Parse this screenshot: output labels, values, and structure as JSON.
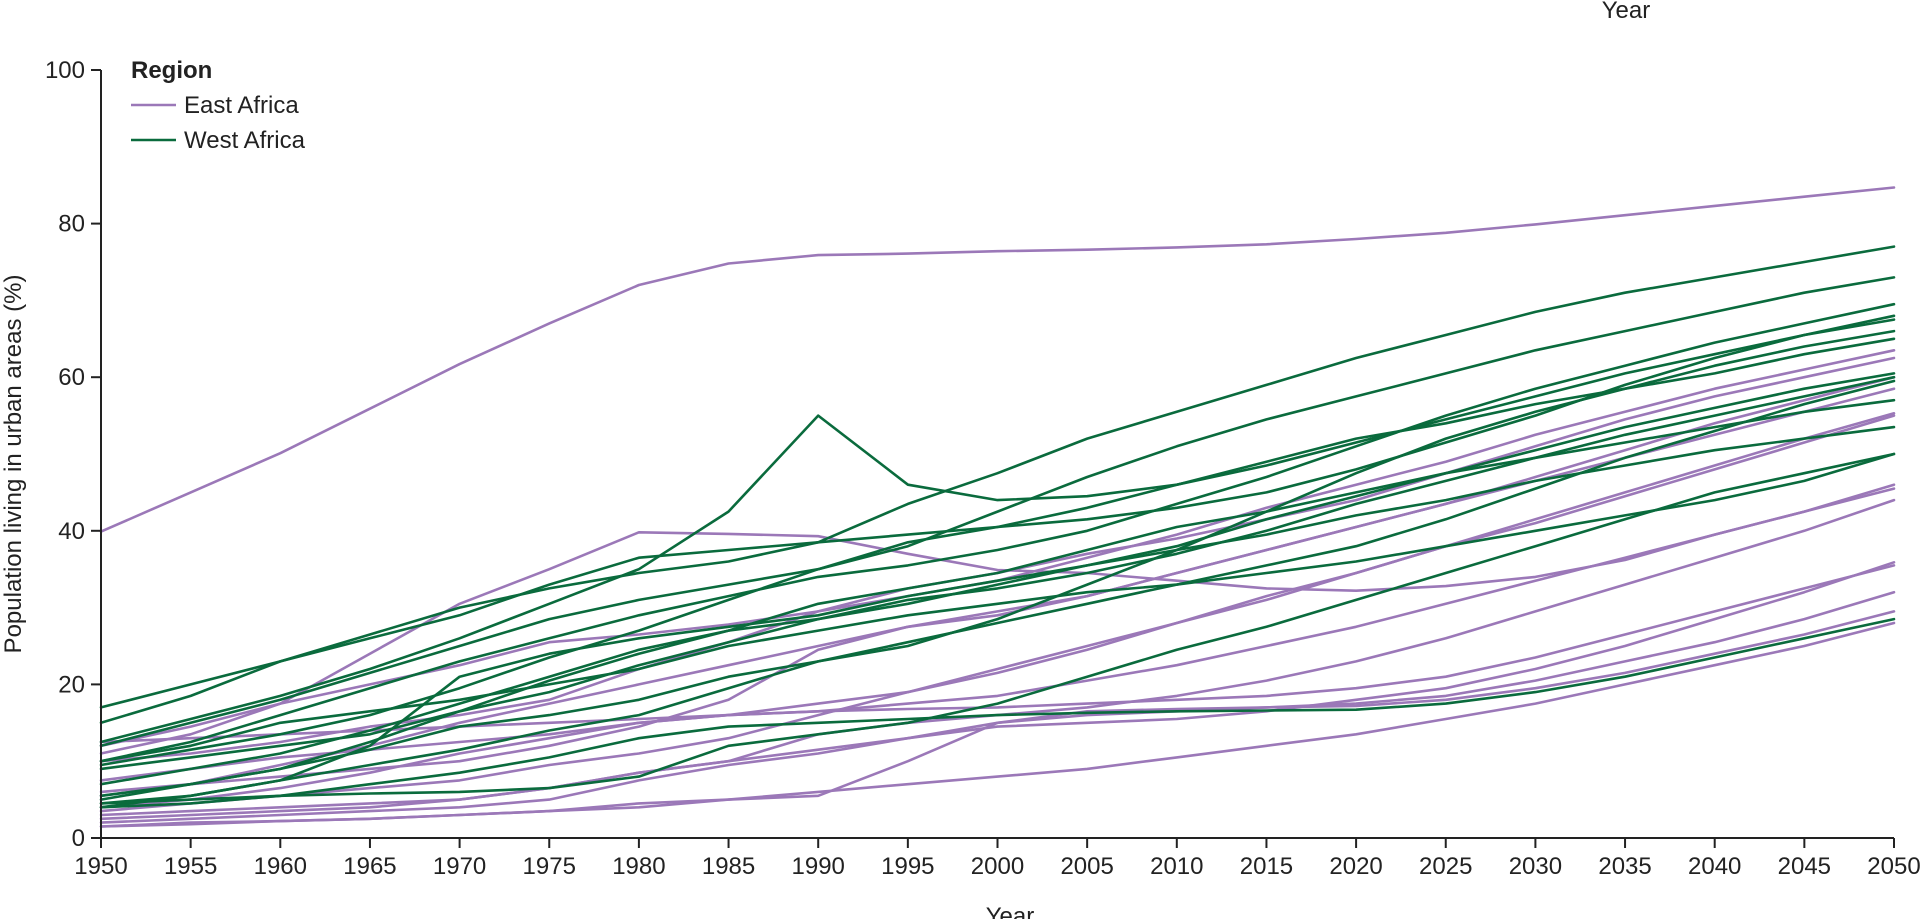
{
  "chart_data": {
    "type": "line",
    "title": "",
    "top_clipped_label": "Year",
    "xlabel": "Year",
    "ylabel": "Population living in urban areas (%)",
    "xlim": [
      1950,
      2050
    ],
    "ylim": [
      0,
      100
    ],
    "x_ticks": [
      1950,
      1955,
      1960,
      1965,
      1970,
      1975,
      1980,
      1985,
      1990,
      1995,
      2000,
      2005,
      2010,
      2015,
      2020,
      2025,
      2030,
      2035,
      2040,
      2045,
      2050
    ],
    "y_ticks": [
      0,
      20,
      40,
      60,
      80,
      100
    ],
    "grid": false,
    "legend": {
      "title": "Region",
      "placement": "top-left",
      "entries": [
        {
          "label": "East Africa",
          "color": "#9b78b8"
        },
        {
          "label": "West Africa",
          "color": "#0a6b3d"
        }
      ]
    },
    "x": [
      1950,
      1955,
      1960,
      1965,
      1970,
      1975,
      1980,
      1985,
      1990,
      1995,
      2000,
      2005,
      2010,
      2015,
      2020,
      2025,
      2030,
      2035,
      2040,
      2045,
      2050
    ],
    "series": [
      {
        "region": "East Africa",
        "values": [
          39.9,
          45.0,
          50.1,
          55.9,
          61.7,
          67.0,
          72.0,
          74.8,
          75.9,
          76.1,
          76.4,
          76.6,
          76.9,
          77.3,
          78.0,
          78.8,
          79.9,
          81.1,
          82.3,
          83.5,
          84.7
        ]
      },
      {
        "region": "East Africa",
        "values": [
          11.0,
          13.5,
          17.5,
          24.0,
          30.5,
          35.0,
          39.8,
          39.6,
          39.3,
          37.0,
          34.9,
          34.5,
          33.5,
          32.5,
          32.2,
          32.8,
          34.0,
          36.2,
          39.5,
          42.5,
          46.0
        ]
      },
      {
        "region": "East Africa",
        "values": [
          12.0,
          14.5,
          17.5,
          20.0,
          22.5,
          25.5,
          26.5,
          27.8,
          29.5,
          31.5,
          33.5,
          36.5,
          39.5,
          43.0,
          46.0,
          49.0,
          52.5,
          55.5,
          58.5,
          61.0,
          63.5
        ]
      },
      {
        "region": "East Africa",
        "values": [
          10.0,
          11.0,
          12.5,
          14.5,
          16.0,
          18.0,
          22.0,
          25.5,
          29.5,
          32.5,
          34.5,
          37.0,
          39.0,
          41.5,
          44.0,
          47.5,
          51.0,
          54.5,
          57.5,
          60.0,
          62.5
        ]
      },
      {
        "region": "East Africa",
        "values": [
          5.5,
          7.0,
          9.5,
          12.0,
          15.0,
          17.5,
          20.0,
          22.5,
          25.0,
          27.5,
          29.0,
          31.5,
          34.5,
          37.5,
          40.5,
          43.5,
          47.0,
          50.5,
          54.0,
          57.0,
          60.0
        ]
      },
      {
        "region": "East Africa",
        "values": [
          6.0,
          7.0,
          8.0,
          9.0,
          10.0,
          12.0,
          14.5,
          18.0,
          24.5,
          27.5,
          29.5,
          31.5,
          34.5,
          37.5,
          40.5,
          43.5,
          46.5,
          49.5,
          52.5,
          55.5,
          58.5
        ]
      },
      {
        "region": "East Africa",
        "values": [
          4.0,
          5.0,
          6.5,
          8.5,
          11.0,
          13.0,
          15.0,
          16.0,
          17.5,
          19.0,
          21.5,
          24.5,
          28.0,
          31.0,
          34.5,
          38.0,
          41.5,
          45.0,
          48.5,
          52.0,
          55.3
        ]
      },
      {
        "region": "East Africa",
        "values": [
          3.5,
          4.5,
          5.5,
          6.5,
          7.5,
          9.5,
          11.0,
          13.0,
          16.0,
          19.0,
          22.0,
          25.0,
          28.0,
          31.5,
          34.5,
          38.0,
          41.0,
          44.5,
          48.0,
          51.5,
          55.0
        ]
      },
      {
        "region": "East Africa",
        "values": [
          7.5,
          9.0,
          10.5,
          11.5,
          12.5,
          13.5,
          15.0,
          16.0,
          16.5,
          17.5,
          18.5,
          20.5,
          22.5,
          25.0,
          27.5,
          30.5,
          33.5,
          36.5,
          39.5,
          42.5,
          45.5
        ]
      },
      {
        "region": "East Africa",
        "values": [
          3.0,
          3.5,
          4.0,
          4.5,
          5.0,
          6.5,
          8.5,
          10.0,
          13.5,
          15.0,
          16.0,
          17.0,
          18.5,
          20.5,
          23.0,
          26.0,
          29.5,
          33.0,
          36.5,
          40.0,
          44.0
        ]
      },
      {
        "region": "East Africa",
        "values": [
          2.5,
          3.0,
          3.5,
          4.0,
          5.0,
          6.5,
          8.5,
          10.0,
          11.5,
          13.0,
          14.5,
          15.0,
          15.5,
          16.5,
          18.0,
          19.5,
          22.0,
          25.0,
          28.5,
          32.0,
          35.9
        ]
      },
      {
        "region": "East Africa",
        "values": [
          2.0,
          2.5,
          3.0,
          3.5,
          4.0,
          5.0,
          7.5,
          9.5,
          11.0,
          13.0,
          15.0,
          16.0,
          16.5,
          17.0,
          17.5,
          18.5,
          20.5,
          23.0,
          25.5,
          28.5,
          32.0
        ]
      },
      {
        "region": "East Africa",
        "values": [
          1.5,
          2.0,
          2.2,
          2.5,
          3.0,
          3.5,
          4.0,
          5.0,
          5.5,
          10.0,
          15.0,
          16.5,
          16.8,
          17.0,
          17.2,
          18.0,
          19.5,
          21.5,
          24.0,
          26.5,
          29.5
        ]
      },
      {
        "region": "East Africa",
        "values": [
          1.5,
          1.8,
          2.2,
          2.5,
          3.0,
          3.5,
          4.5,
          5.0,
          6.0,
          7.0,
          8.0,
          9.0,
          10.5,
          12.0,
          13.5,
          15.5,
          17.5,
          20.0,
          22.5,
          25.0,
          28.0
        ]
      },
      {
        "region": "East Africa",
        "values": [
          12.5,
          13.0,
          13.5,
          14.0,
          14.5,
          15.0,
          15.5,
          16.0,
          16.5,
          16.8,
          17.0,
          17.5,
          18.0,
          18.5,
          19.5,
          21.0,
          23.5,
          26.5,
          29.5,
          32.5,
          35.5
        ]
      },
      {
        "region": "West Africa",
        "values": [
          17.0,
          20.0,
          23.0,
          26.0,
          29.0,
          33.0,
          36.5,
          37.5,
          38.5,
          39.5,
          40.5,
          41.5,
          43.0,
          45.0,
          48.0,
          51.5,
          55.0,
          59.0,
          62.5,
          65.5,
          68.0
        ]
      },
      {
        "region": "West Africa",
        "values": [
          12.5,
          15.5,
          18.5,
          22.0,
          26.0,
          30.5,
          35.0,
          42.5,
          55.0,
          46.0,
          44.0,
          44.5,
          46.0,
          48.5,
          51.5,
          54.5,
          57.5,
          60.5,
          63.0,
          65.5,
          67.5
        ]
      },
      {
        "region": "West Africa",
        "values": [
          15.0,
          18.5,
          23.0,
          26.5,
          30.0,
          32.5,
          34.5,
          36.0,
          38.5,
          43.5,
          47.5,
          52.0,
          55.5,
          59.0,
          62.5,
          65.5,
          68.5,
          71.0,
          73.0,
          75.0,
          77.0
        ]
      },
      {
        "region": "West Africa",
        "values": [
          12.0,
          15.0,
          18.0,
          21.5,
          25.0,
          28.5,
          31.0,
          33.0,
          35.0,
          38.0,
          42.5,
          47.0,
          51.0,
          54.5,
          57.5,
          60.5,
          63.5,
          66.0,
          68.5,
          71.0,
          73.0
        ]
      },
      {
        "region": "West Africa",
        "values": [
          10.0,
          12.5,
          16.0,
          19.5,
          23.0,
          26.0,
          29.0,
          31.5,
          34.0,
          35.5,
          37.5,
          40.0,
          43.5,
          47.0,
          51.0,
          55.0,
          58.5,
          61.5,
          64.5,
          67.0,
          69.5
        ]
      },
      {
        "region": "West Africa",
        "values": [
          9.5,
          11.5,
          13.5,
          16.0,
          19.5,
          23.5,
          27.0,
          31.0,
          35.0,
          38.5,
          40.5,
          43.0,
          46.0,
          49.0,
          52.0,
          54.0,
          56.5,
          58.5,
          60.5,
          63.0,
          65.0
        ]
      },
      {
        "region": "West Africa",
        "values": [
          7.0,
          9.0,
          11.0,
          14.0,
          17.5,
          21.0,
          24.5,
          27.0,
          28.5,
          30.5,
          33.0,
          35.5,
          38.0,
          41.5,
          44.5,
          47.5,
          50.5,
          53.5,
          56.0,
          58.5,
          60.5
        ]
      },
      {
        "region": "West Africa",
        "values": [
          9.0,
          10.5,
          12.0,
          13.5,
          16.5,
          19.0,
          22.5,
          25.5,
          28.5,
          31.0,
          32.5,
          34.5,
          37.0,
          40.0,
          43.5,
          46.5,
          49.5,
          52.5,
          55.0,
          57.5,
          60.0
        ]
      },
      {
        "region": "West Africa",
        "values": [
          5.0,
          7.0,
          9.0,
          12.5,
          16.5,
          20.5,
          24.0,
          27.0,
          30.5,
          32.5,
          34.5,
          37.5,
          40.5,
          42.5,
          45.0,
          47.5,
          49.5,
          51.5,
          53.5,
          55.5,
          57.0
        ]
      },
      {
        "region": "West Africa",
        "values": [
          4.0,
          5.5,
          7.5,
          12.0,
          21.0,
          24.0,
          26.0,
          27.5,
          29.0,
          31.5,
          33.5,
          35.5,
          37.5,
          39.5,
          42.0,
          44.0,
          46.5,
          48.5,
          50.5,
          52.0,
          53.5
        ]
      },
      {
        "region": "West Africa",
        "values": [
          10.0,
          12.0,
          15.0,
          16.5,
          18.0,
          20.0,
          22.0,
          25.0,
          27.0,
          29.0,
          30.5,
          32.0,
          33.0,
          34.5,
          36.0,
          38.0,
          40.0,
          42.0,
          44.0,
          46.5,
          50.0
        ]
      },
      {
        "region": "West Africa",
        "values": [
          4.5,
          5.5,
          7.5,
          9.5,
          11.5,
          14.0,
          16.0,
          19.5,
          23.0,
          25.5,
          28.0,
          30.5,
          33.0,
          35.5,
          38.0,
          41.5,
          45.5,
          49.5,
          53.0,
          56.5,
          59.5
        ]
      },
      {
        "region": "West Africa",
        "values": [
          5.5,
          7.0,
          9.0,
          11.5,
          14.5,
          16.0,
          18.0,
          21.0,
          23.0,
          25.0,
          28.5,
          33.0,
          37.5,
          42.5,
          47.5,
          52.0,
          55.5,
          58.5,
          61.5,
          64.0,
          66.0
        ]
      },
      {
        "region": "West Africa",
        "values": [
          4.0,
          4.5,
          5.5,
          7.0,
          8.5,
          10.5,
          13.0,
          14.5,
          15.0,
          15.5,
          16.0,
          16.3,
          16.5,
          16.6,
          16.7,
          17.5,
          19.0,
          21.0,
          23.5,
          26.0,
          28.5
        ]
      },
      {
        "region": "West Africa",
        "values": [
          4.5,
          5.0,
          5.5,
          5.8,
          6.0,
          6.5,
          8.0,
          12.0,
          13.5,
          15.0,
          17.5,
          21.0,
          24.5,
          27.5,
          31.0,
          34.5,
          38.0,
          41.5,
          45.0,
          47.5,
          50.0
        ]
      }
    ]
  }
}
